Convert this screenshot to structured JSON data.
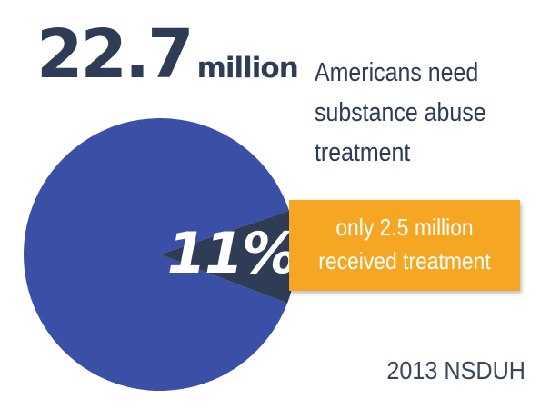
{
  "headline": {
    "value": "22.7",
    "unit": "million",
    "description_lines": [
      "Americans need",
      "substance abuse",
      "treatment"
    ]
  },
  "callout": {
    "lines": [
      "only 2.5 million",
      "received treatment"
    ]
  },
  "source": "2013 NSDUH",
  "colors": {
    "pie_main": "#3a4fa6",
    "pie_slice": "#2e3c56",
    "callout_bg": "#f5a623",
    "text_dark": "#2e3c56"
  },
  "chart_data": {
    "type": "pie",
    "total_label": "22.7 million",
    "slices": [
      {
        "label": "",
        "value": 89
      },
      {
        "label": "11%",
        "value": 11
      }
    ]
  }
}
